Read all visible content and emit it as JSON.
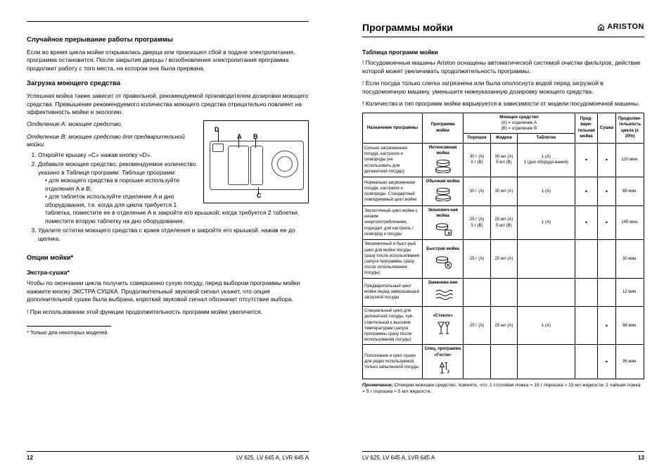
{
  "left": {
    "h1": "Случайное прерывание работы программы",
    "p1": "Если во время цикла мойки открывалась дверца или произошел сбой в подаче электропитания, программа остановится. После закрытия дверцы / возобновления электропитания программа продолжит работу с того места, на котором она была прервана.",
    "h2": "Загрузка моющего средства",
    "p2": "Успешная мойка также зависит от правильной, рекомендуемой производителем дозировки моющего средства. Превышение рекомендуемого количества моющего средства отрицательно повлияет на эффективность мойки и экологию.",
    "iA": "Отделение A: моющее средство.",
    "iB": "Отделение B: моющее средство для предварительной мойки.",
    "li1": "Откройте крышку «C» нажав кнопку «D».",
    "li2a": "Добавьте моющее средство: рекомендуемое количество указано в Таблице программ:",
    "li2b1": "для моющего средства в порошке используйте отделения A и B;",
    "li2b2": "для таблеток используйте отделение A и дно оборудования, т.е. когда для цикла требуется 1 таблетка, поместите ее в отделение A и закройте его крышкой; когда требуется 2 таблетки, поместите вторую таблетку на дно оборудования.",
    "li3": "Удалите остатки моющего средства с краев отделения и закройте его крышкой, нажав ее до щелчка.",
    "h3": "Опции мойки*",
    "h4": "Экстра-сушка*",
    "p3": "Чтобы по окончании цикла получить совершенно сухую посуду, перед выбором программы мойки нажмите кнопку ЭКСТРА СУШКА. Продолжительный звуковой сигнал укажет, что опция дополнительной сушки была выбрана, короткий звуковой сигнал обозначит отсутствие выбора.",
    "p3b": "! При использовании этой функции продолжительность программ мойки увеличится.",
    "fn": "* Только для некоторых моделей.",
    "models": "LV 625, LV 645 A, LVR 645 A",
    "pn": "12",
    "diag": {
      "D": "D",
      "A": "A",
      "B": "B",
      "C": "C"
    }
  },
  "right": {
    "title": "Программы мойки",
    "brand": "ARISTON",
    "h1": "Таблица программ мойки",
    "p1": "! Посудомоечные машины Ariston оснащены автоматической системой очистки фильтров, действие которой  может увеличивать продолжительность программы.",
    "p2": "! Если посуда только слегка загрязнена или была ополоснута водой перед загрузкой в посудомоечную машину, уменьшите нижеуказанную дозировку моющего средства.",
    "p3": "! Количество и тип программ мойки варьируется в зависимости от модели посудомоечной машины.",
    "th": {
      "c1": "Назначение программы",
      "c2": "Программа мойки",
      "c3t": "Моющее средство",
      "c3s": "(A) = отделение A\n(B) = отделение B",
      "c3a": "Порошок",
      "c3b": "Жидкое",
      "c3c": "Таблетки",
      "c4": "Пред-вари-тельная мойка",
      "c5": "Сушка",
      "c6": "Продолжи-тельность цикла (± 10%)"
    },
    "rows": [
      {
        "desc": "Сильно загрязненная посуда, кастрюли и сковороды (не использовать для деликатной посуды)",
        "prog": "Интенсивная мойка",
        "icon": "pots",
        "p": "30 г (A)\n5 г (B)",
        "l": "30 мл (A)\n5 мл (B)",
        "t": "1 (A)\n1 (дно оборудо-вания)",
        "pre": "•",
        "dry": "•",
        "dur": "120 мин."
      },
      {
        "desc": "Нормально загрязненная посуда, кастрюли и сковороды. Стандартный повседневный цикл мойки",
        "prog": "Обычная мойка",
        "icon": "pots",
        "p": "30 г (A)",
        "l": "30 мл (A)",
        "t": "1 (A)",
        "pre": "•",
        "dry": "•",
        "dur": "88 мин."
      },
      {
        "desc": "Экологичный цикл мойки с низким энергопотреблением, подходит для кастрюль / сковород и посуды",
        "prog": "Экономич-ная мойка",
        "icon": "eco",
        "p": "25 г (A)\n5 г (B)",
        "l": "25 мл (A)\n5 мл (B)",
        "t": "1 (A)",
        "pre": "•",
        "dry": "•",
        "dur": "145 мин."
      },
      {
        "desc": "Экономичный и быст-рый цикл для мойки посуды сразу после использования (запуск программы сразу после использования посуды)",
        "prog": "Быстрая мойка",
        "icon": "fast",
        "p": "25 г (A)",
        "l": "25 мл (A)",
        "t": "",
        "pre": "",
        "dry": "",
        "dur": "30 мин."
      },
      {
        "desc": "Предварительный цикл мойки перед завершающей загрузкой посуды",
        "prog": "Замачива-ние",
        "icon": "soak",
        "p": "",
        "l": "",
        "t": "",
        "pre": "",
        "dry": "",
        "dur": "12 мин."
      },
      {
        "desc": "Специальный цикл для деликатной посуды, чув-ствительной к высоким температурам (запуск программы сразу после использования посуды)",
        "prog": "«Стекло»",
        "icon": "glass",
        "p": "25 г (A)",
        "l": "25 мл (A)",
        "t": "1 (A)",
        "pre": "",
        "dry": "•",
        "dur": "98 мин."
      },
      {
        "desc": "Полоскание и цикл сушки для редко используемой, только запыленной посуды",
        "prog": "Спец. программа «Гости»",
        "icon": "guest",
        "p": "",
        "l": "",
        "t": "",
        "pre": "",
        "dry": "•",
        "dur": "36 мин."
      }
    ],
    "noteA": "Примечание:",
    "noteB": " Отмеряя моющее средство, помните, что: 1 столовая ложка = 15 г порошка ≈ 15 мл жидкости; 1 чайная ложка = 5 г порошка ≈ 5 мл жидкости.",
    "models": "LV 625, LV 645 A, LVR 645 A",
    "pn": "13"
  }
}
